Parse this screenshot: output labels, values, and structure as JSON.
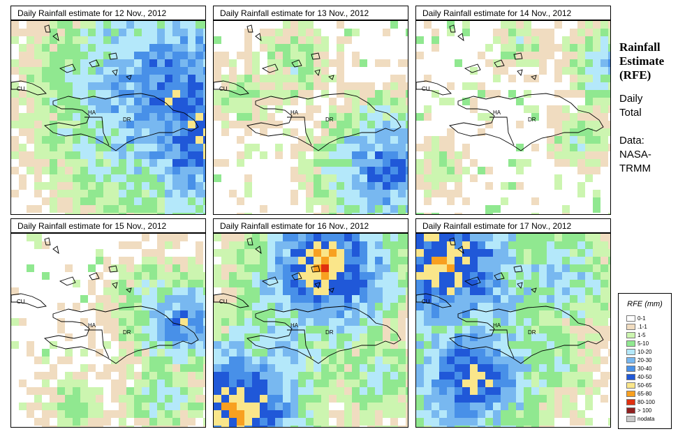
{
  "panels": [
    {
      "title": "Daily Rainfall estimate for  12 Nov., 2012"
    },
    {
      "title": "Daily Rainfall estimate for  13 Nov., 2012"
    },
    {
      "title": "Daily Rainfall estimate for  14 Nov., 2012"
    },
    {
      "title": "Daily Rainfall estimate for  15 Nov., 2012"
    },
    {
      "title": "Daily Rainfall estimate for  16 Nov., 2012"
    },
    {
      "title": "Daily Rainfall estimate for  17 Nov., 2012"
    }
  ],
  "map_labels": {
    "cu": "CU",
    "ha": "HA",
    "dr": "DR"
  },
  "sidebar": {
    "title_line1": "Rainfall",
    "title_line2": "Estimate",
    "title_line3": "(RFE)",
    "desc_line1": "Daily",
    "desc_line2": "Total",
    "data_line1": "Data:",
    "data_line2": "NASA-",
    "data_line3": "TRMM"
  },
  "legend": {
    "title": "RFE (mm)",
    "items": [
      {
        "label": "0-1",
        "color": "#ffffff"
      },
      {
        "label": ".1-1",
        "color": "#f0dcc0"
      },
      {
        "label": "1-5",
        "color": "#ccf5b0"
      },
      {
        "label": "5-10",
        "color": "#90e890"
      },
      {
        "label": "10-20",
        "color": "#b4e8fa"
      },
      {
        "label": "20-30",
        "color": "#78b8f0"
      },
      {
        "label": "30-40",
        "color": "#4890e8"
      },
      {
        "label": "40-50",
        "color": "#2058d8"
      },
      {
        "label": "50-65",
        "color": "#fae68a"
      },
      {
        "label": "65-80",
        "color": "#f8a020"
      },
      {
        "label": "80-100",
        "color": "#e03010"
      },
      {
        "label": "> 100",
        "color": "#902020"
      },
      {
        "label": "nodata",
        "color": "#c8c8c8"
      }
    ]
  },
  "rainfall_seeds": [
    [
      [
        0.8,
        0.35,
        0.95,
        7
      ],
      [
        0.97,
        0.55,
        0.7,
        8
      ],
      [
        0.45,
        0.3,
        0.55,
        5
      ],
      [
        0.3,
        0.25,
        0.3,
        3
      ],
      [
        0.95,
        0.7,
        0.35,
        5
      ]
    ],
    [
      [
        0.85,
        0.72,
        0.5,
        7
      ],
      [
        0.78,
        0.6,
        0.35,
        5
      ],
      [
        0.4,
        0.2,
        0.3,
        3
      ],
      [
        0.15,
        0.35,
        0.25,
        3
      ]
    ],
    [
      [
        0.95,
        0.2,
        0.3,
        5
      ],
      [
        0.8,
        0.55,
        0.2,
        4
      ],
      [
        0.5,
        0.1,
        0.2,
        3
      ],
      [
        0.1,
        0.7,
        0.2,
        3
      ]
    ],
    [
      [
        0.75,
        0.38,
        0.4,
        5
      ],
      [
        0.85,
        0.42,
        0.35,
        7
      ],
      [
        0.3,
        0.85,
        0.25,
        3
      ],
      [
        0.75,
        0.8,
        0.3,
        4
      ]
    ],
    [
      [
        0.5,
        0.2,
        0.6,
        7
      ],
      [
        0.55,
        0.15,
        0.55,
        9
      ],
      [
        0.1,
        0.85,
        0.55,
        9
      ],
      [
        0.3,
        0.55,
        0.5,
        5
      ],
      [
        0.8,
        0.7,
        0.35,
        4
      ]
    ],
    [
      [
        0.12,
        0.13,
        0.6,
        9
      ],
      [
        0.25,
        0.7,
        0.55,
        8
      ],
      [
        0.4,
        0.3,
        0.5,
        5
      ],
      [
        0.7,
        0.2,
        0.45,
        5
      ],
      [
        0.6,
        0.6,
        0.4,
        4
      ]
    ]
  ]
}
